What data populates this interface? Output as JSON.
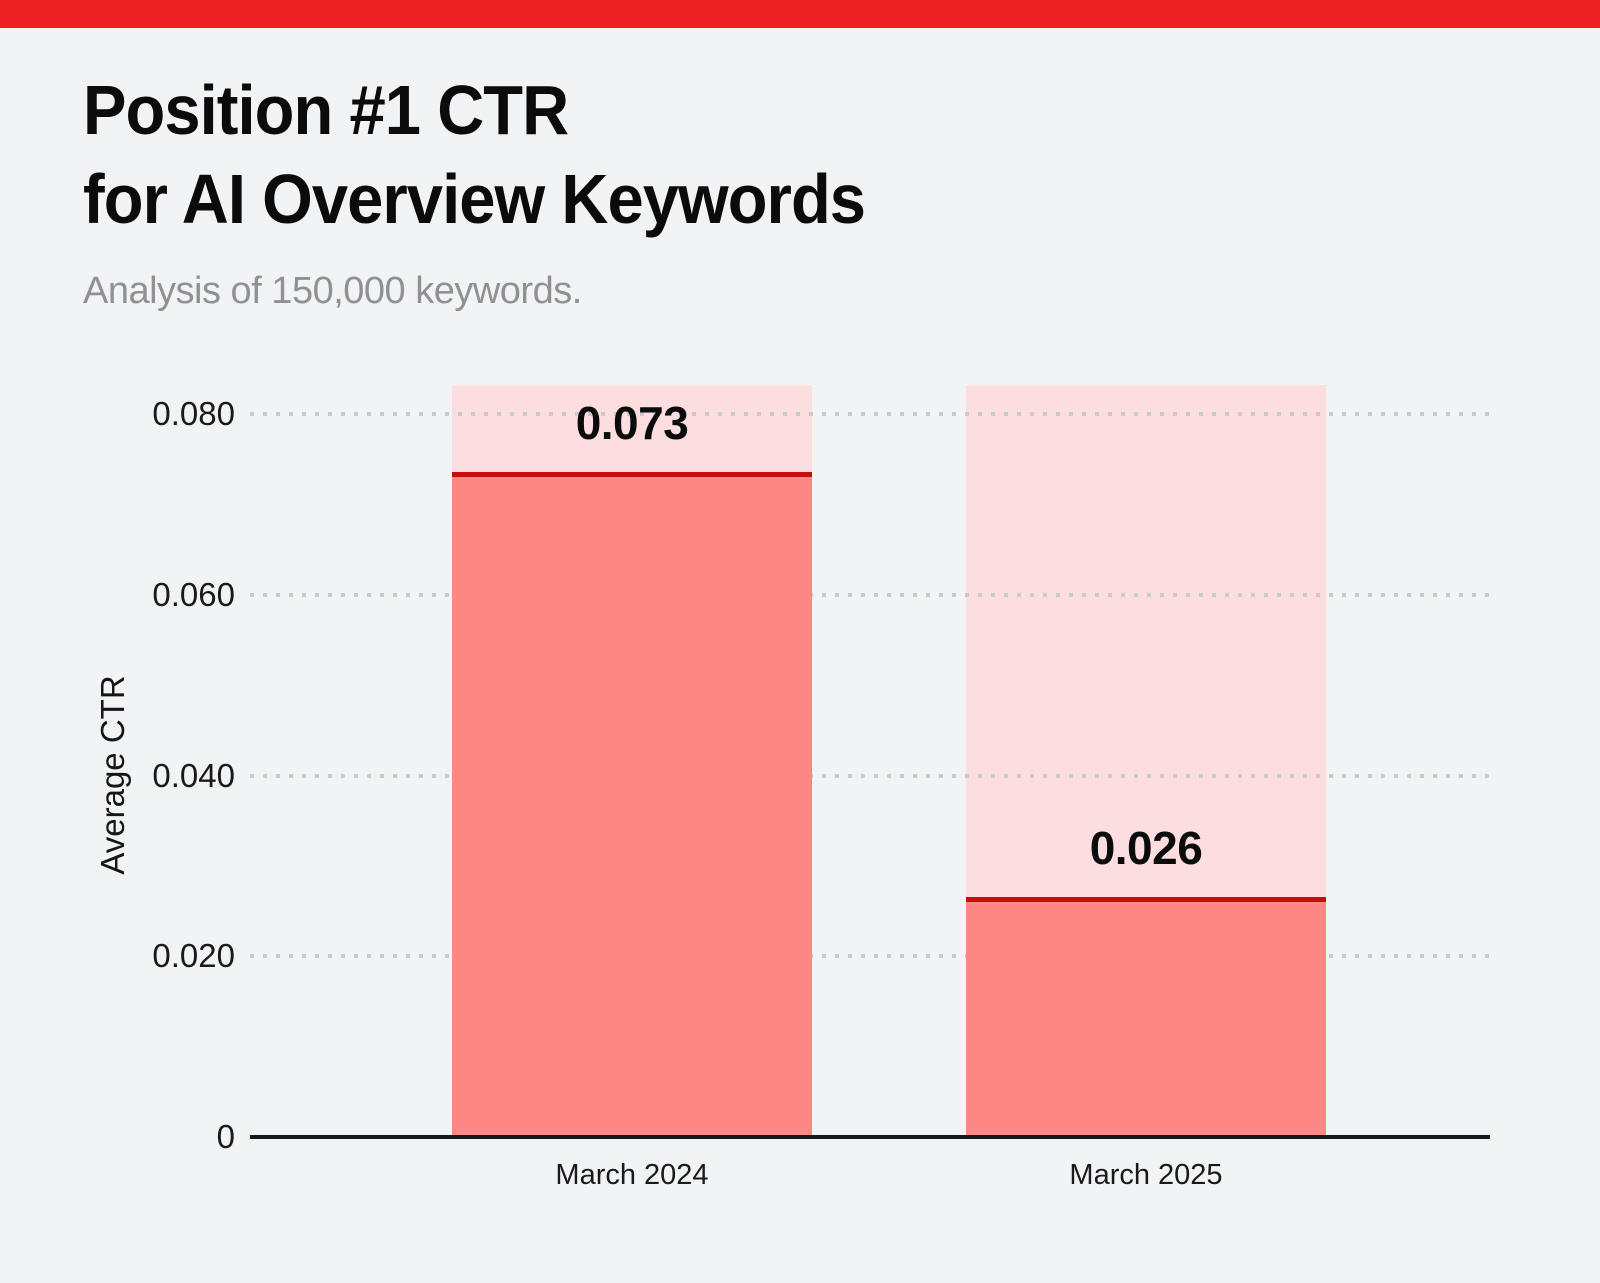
{
  "page": {
    "background_color": "#f2f3f5",
    "accent_bar_color": "#ed2124"
  },
  "header": {
    "title_line1": "Position #1 CTR",
    "title_line2": "for AI Overview Keywords",
    "subtitle": "Analysis of 150,000 keywords."
  },
  "chart_data": {
    "type": "bar",
    "title": "Position #1 CTR for AI Overview Keywords",
    "subtitle": "Analysis of 150,000 keywords.",
    "categories": [
      "March 2024",
      "March 2025"
    ],
    "values": [
      0.073,
      0.026
    ],
    "value_labels": [
      "0.073",
      "0.026"
    ],
    "xlabel": "",
    "ylabel": "Average CTR",
    "ylim": [
      0,
      0.0832
    ],
    "backdrop_max": 0.0832,
    "yticks": [
      {
        "value": 0.08,
        "label": "0.080"
      },
      {
        "value": 0.06,
        "label": "0.060"
      },
      {
        "value": 0.04,
        "label": "0.040"
      },
      {
        "value": 0.02,
        "label": "0.020"
      },
      {
        "value": 0,
        "label": "0"
      }
    ],
    "grid": "dotted-horizontal",
    "legend": "none",
    "colors": {
      "bar_fill": "#fc8886",
      "bar_backdrop": "#fcdede",
      "bar_top_line": "#c90c0c",
      "axis_line": "#161616",
      "grid_dots": "#c9cacc",
      "value_label": "#0b0b0b",
      "tick_label": "#1a1a1a"
    }
  }
}
